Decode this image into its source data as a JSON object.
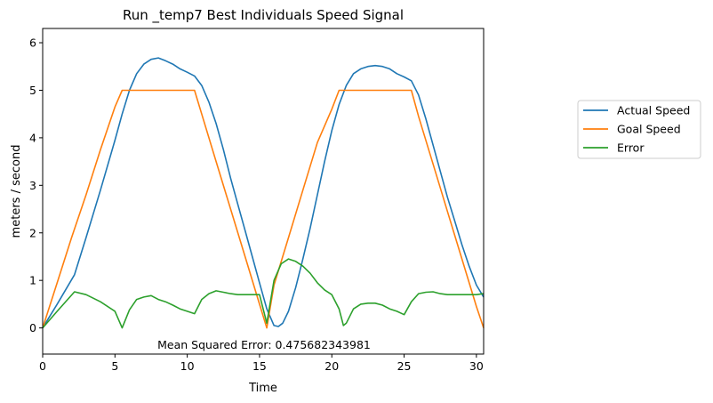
{
  "chart_data": {
    "type": "line",
    "title": "Run _temp7 Best Individuals Speed Signal",
    "xlabel": "Time",
    "ylabel": "meters / second",
    "xlim": [
      0,
      30.5
    ],
    "ylim": [
      -0.55,
      6.3
    ],
    "xticks": [
      0,
      5,
      10,
      15,
      20,
      25,
      30
    ],
    "yticks": [
      0,
      1,
      2,
      3,
      4,
      5,
      6
    ],
    "grid": false,
    "legend_position": "outside-right",
    "annotation": "Mean Squared Error: 0.475682343981",
    "series": [
      {
        "name": "Actual Speed",
        "color": "#1f77b4",
        "x": [
          0,
          1,
          2.2,
          3,
          4,
          5,
          5.5,
          6,
          6.5,
          7,
          7.5,
          8,
          8.5,
          9,
          9.5,
          10,
          10.5,
          11,
          11.5,
          12,
          12.5,
          13,
          13.5,
          14,
          14.5,
          15,
          15.5,
          16,
          16.3,
          16.6,
          17,
          17.5,
          18,
          18.5,
          19,
          19.5,
          20,
          20.5,
          21,
          21.5,
          22,
          22.5,
          23,
          23.5,
          24,
          24.5,
          25,
          25.5,
          26,
          26.5,
          27,
          27.5,
          28,
          28.5,
          29,
          29.5,
          30,
          30.5
        ],
        "y": [
          0,
          0.5,
          1.12,
          1.9,
          2.9,
          3.95,
          4.5,
          5.0,
          5.35,
          5.55,
          5.65,
          5.68,
          5.62,
          5.55,
          5.45,
          5.38,
          5.3,
          5.1,
          4.75,
          4.3,
          3.75,
          3.15,
          2.6,
          2.05,
          1.5,
          0.95,
          0.4,
          0.05,
          0.03,
          0.1,
          0.35,
          0.85,
          1.45,
          2.1,
          2.8,
          3.5,
          4.15,
          4.7,
          5.1,
          5.35,
          5.45,
          5.5,
          5.52,
          5.5,
          5.45,
          5.35,
          5.28,
          5.2,
          4.9,
          4.4,
          3.85,
          3.3,
          2.75,
          2.25,
          1.75,
          1.3,
          0.9,
          0.65
        ]
      },
      {
        "name": "Goal Speed",
        "color": "#ff7f0e",
        "x": [
          0,
          1,
          2,
          3,
          4,
          5,
          5.5,
          6,
          7,
          8,
          9,
          10,
          10.5,
          11,
          12,
          13,
          14,
          15,
          15.5,
          16,
          17,
          18,
          19,
          20,
          20.5,
          21,
          22,
          23,
          24,
          25,
          25.5,
          26,
          27,
          28,
          29,
          30,
          30.5
        ],
        "y": [
          0,
          0.95,
          1.9,
          2.8,
          3.75,
          4.65,
          5.0,
          5.0,
          5.0,
          5.0,
          5.0,
          5.0,
          5.0,
          4.5,
          3.5,
          2.5,
          1.5,
          0.5,
          0.0,
          0.9,
          1.9,
          2.9,
          3.9,
          4.6,
          5.0,
          5.0,
          5.0,
          5.0,
          5.0,
          5.0,
          5.0,
          4.45,
          3.45,
          2.45,
          1.45,
          0.45,
          0.0
        ]
      },
      {
        "name": "Error",
        "color": "#2ca02c",
        "x": [
          0,
          1,
          2.2,
          3,
          4,
          5,
          5.5,
          6,
          6.5,
          7,
          7.5,
          8,
          8.5,
          9,
          9.5,
          10,
          10.5,
          11,
          11.5,
          12,
          12.5,
          13,
          13.5,
          14,
          14.5,
          15,
          15.5,
          16,
          16.5,
          17,
          17.5,
          18,
          18.5,
          19,
          19.5,
          20,
          20.5,
          20.8,
          21,
          21.5,
          22,
          22.5,
          23,
          23.5,
          24,
          24.5,
          25,
          25.5,
          26,
          26.5,
          27,
          27.5,
          28,
          28.5,
          29,
          29.5,
          30,
          30.5
        ],
        "y": [
          0,
          0.35,
          0.76,
          0.7,
          0.55,
          0.35,
          0.0,
          0.38,
          0.6,
          0.65,
          0.68,
          0.6,
          0.55,
          0.48,
          0.4,
          0.35,
          0.3,
          0.6,
          0.72,
          0.78,
          0.75,
          0.72,
          0.7,
          0.7,
          0.7,
          0.7,
          0.1,
          1.0,
          1.35,
          1.45,
          1.4,
          1.3,
          1.15,
          0.95,
          0.8,
          0.7,
          0.4,
          0.05,
          0.1,
          0.4,
          0.5,
          0.52,
          0.52,
          0.48,
          0.4,
          0.35,
          0.28,
          0.55,
          0.72,
          0.75,
          0.76,
          0.72,
          0.7,
          0.7,
          0.7,
          0.7,
          0.7,
          0.72
        ]
      }
    ]
  }
}
